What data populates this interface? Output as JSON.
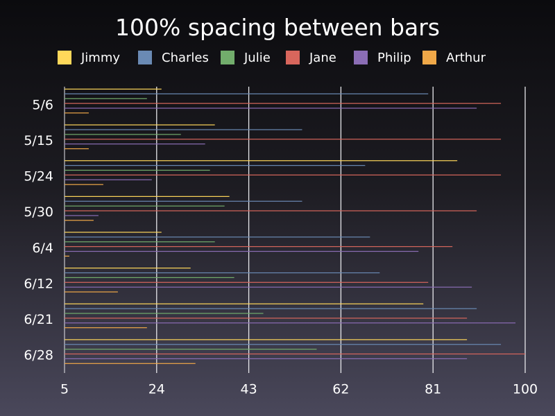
{
  "chart_data": {
    "type": "bar",
    "orientation": "horizontal",
    "title": "100% spacing between bars",
    "xlabel": "",
    "ylabel": "",
    "xlim": [
      5,
      100
    ],
    "x_ticks": [
      "5",
      "24",
      "43",
      "62",
      "81",
      "100"
    ],
    "grid": "vertical",
    "legend_position": "top",
    "categories": [
      "5/6",
      "5/15",
      "5/24",
      "5/30",
      "6/4",
      "6/12",
      "6/21",
      "6/28"
    ],
    "series": [
      {
        "name": "Jimmy",
        "color": "#ffd85a",
        "values": [
          25,
          36,
          86,
          39,
          25,
          31,
          79,
          88
        ]
      },
      {
        "name": "Charles",
        "color": "#6a8ab4",
        "values": [
          80,
          54,
          67,
          54,
          68,
          70,
          90,
          95
        ]
      },
      {
        "name": "Julie",
        "color": "#72ad6c",
        "values": [
          22,
          29,
          35,
          38,
          36,
          40,
          46,
          57
        ]
      },
      {
        "name": "Jane",
        "color": "#d8665c",
        "values": [
          95,
          95,
          95,
          90,
          85,
          80,
          88,
          100
        ]
      },
      {
        "name": "Philip",
        "color": "#8b6db5",
        "values": [
          90,
          34,
          23,
          12,
          78,
          89,
          98,
          88
        ]
      },
      {
        "name": "Arthur",
        "color": "#f0a848",
        "values": [
          10,
          10,
          13,
          11,
          6,
          16,
          22,
          32
        ]
      }
    ]
  }
}
